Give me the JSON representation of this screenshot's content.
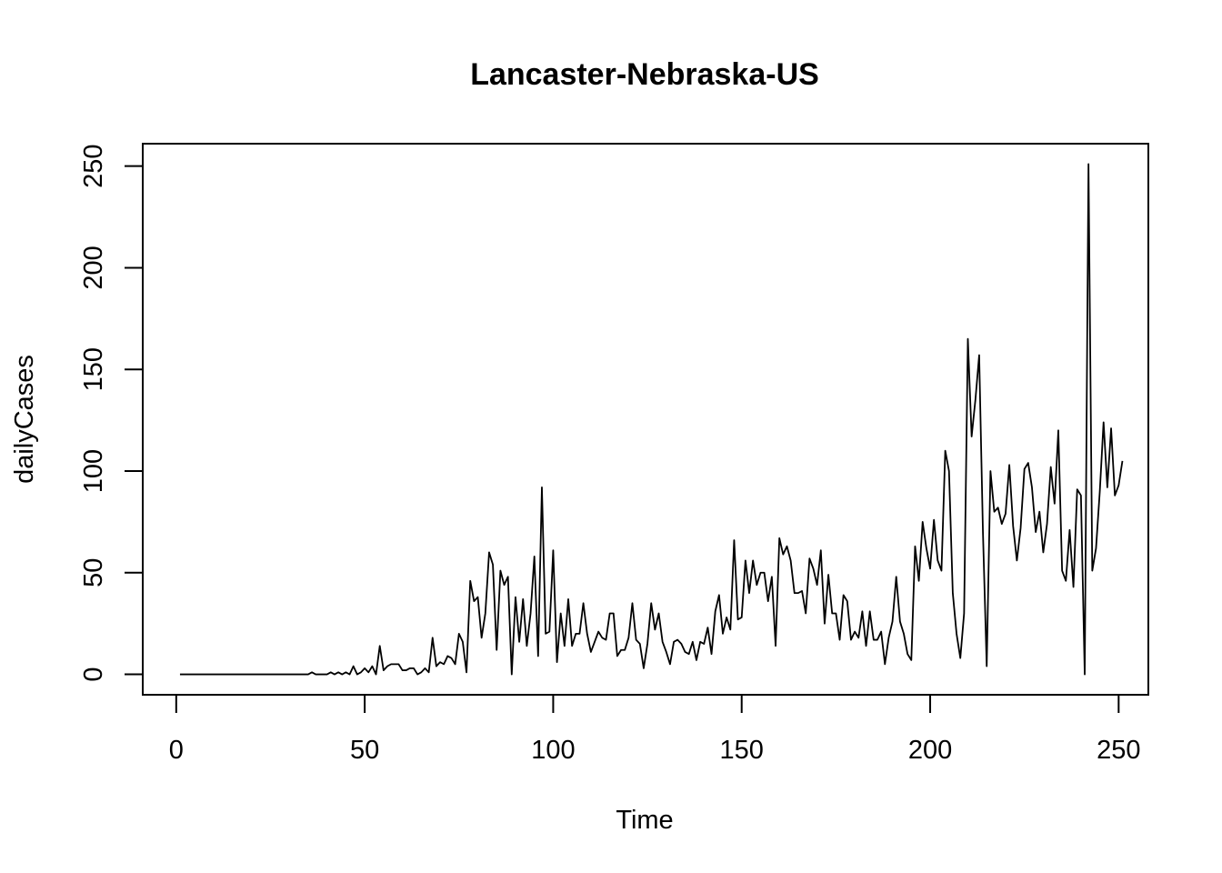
{
  "chart_data": {
    "type": "line",
    "title": "Lancaster-Nebraska-US",
    "xlabel": "Time",
    "ylabel": "dailyCases",
    "xlim": [
      -8.88,
      257.88
    ],
    "ylim": [
      -10.04,
      261.04
    ],
    "x_ticks": [
      0,
      50,
      100,
      150,
      200,
      250
    ],
    "x_tick_labels": [
      "0",
      "50",
      "100",
      "150",
      "200",
      "250"
    ],
    "y_ticks": [
      0,
      50,
      100,
      150,
      200,
      250
    ],
    "y_tick_labels": [
      "0",
      "50",
      "100",
      "150",
      "200",
      "250"
    ],
    "grid": false,
    "legend": "none",
    "line_color": "#000000",
    "series": [
      {
        "x_start": 1,
        "values": [
          0,
          0,
          0,
          0,
          0,
          0,
          0,
          0,
          0,
          0,
          0,
          0,
          0,
          0,
          0,
          0,
          0,
          0,
          0,
          0,
          0,
          0,
          0,
          0,
          0,
          0,
          0,
          0,
          0,
          0,
          0,
          0,
          0,
          0,
          0,
          1,
          0,
          0,
          0,
          0,
          1,
          0,
          1,
          0,
          1,
          0,
          4,
          0,
          1,
          3,
          1,
          4,
          0,
          14,
          2,
          4,
          5,
          5,
          5,
          2,
          2,
          3,
          3,
          0,
          1,
          3,
          1,
          18,
          4,
          6,
          5,
          9,
          8,
          5,
          20,
          16,
          1,
          46,
          36,
          38,
          18,
          30,
          60,
          54,
          12,
          51,
          44,
          48,
          0,
          38,
          16,
          37,
          14,
          30,
          58,
          9,
          92,
          20,
          21,
          61,
          6,
          30,
          14,
          37,
          14,
          20,
          20,
          35,
          20,
          11,
          16,
          21,
          18,
          17,
          30,
          30,
          9,
          12,
          12,
          18,
          35,
          17,
          15,
          3,
          15,
          35,
          22,
          30,
          16,
          11,
          5,
          16,
          17,
          15,
          11,
          10,
          16,
          7,
          16,
          15,
          23,
          10,
          31,
          39,
          20,
          28,
          22,
          66,
          27,
          28,
          56,
          40,
          56,
          44,
          50,
          50,
          36,
          48,
          14,
          67,
          59,
          63,
          56,
          40,
          40,
          41,
          30,
          57,
          52,
          44,
          61,
          25,
          49,
          30,
          30,
          17,
          39,
          36,
          17,
          21,
          18,
          31,
          14,
          31,
          17,
          17,
          21,
          5,
          18,
          26,
          48,
          26,
          20,
          10,
          7,
          63,
          46,
          75,
          62,
          52,
          76,
          56,
          51,
          110,
          100,
          40,
          20,
          8,
          30,
          165,
          117,
          135,
          157,
          70,
          4,
          100,
          80,
          82,
          74,
          79,
          103,
          73,
          56,
          72,
          101,
          104,
          92,
          70,
          80,
          60,
          74,
          102,
          84,
          120,
          51,
          46,
          71,
          43,
          91,
          88,
          0,
          251,
          51,
          62,
          90,
          124,
          92,
          121,
          88,
          93,
          105
        ]
      }
    ]
  }
}
